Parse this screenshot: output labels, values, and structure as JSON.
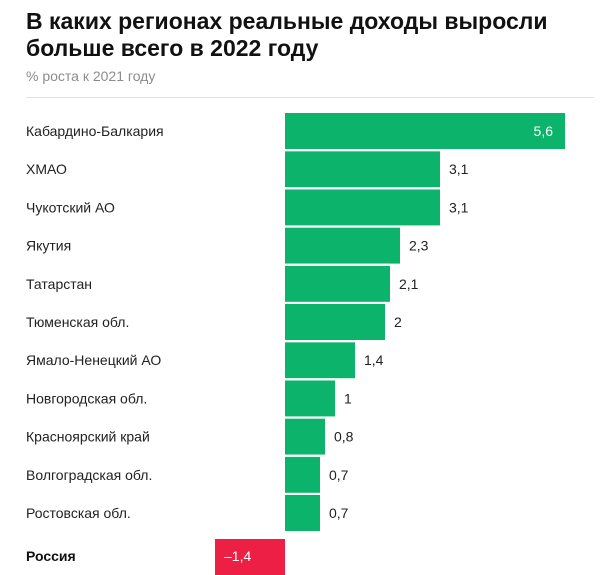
{
  "header": {
    "title": "В каких регионах реальные доходы выросли больше всего в 2022 году",
    "subtitle": "% роста к 2021 году"
  },
  "colors": {
    "positive": "#0bb46a",
    "negative": "#ee1f44",
    "divider": "#ffffff"
  },
  "chart_data": {
    "type": "bar",
    "orientation": "horizontal",
    "title": "В каких регионах реальные доходы выросли больше всего в 2022 году",
    "subtitle": "% роста к 2021 году",
    "categories": [
      "Кабардино-Балкария",
      "ХМАО",
      "Чукотский АО",
      "Якутия",
      "Татарстан",
      "Тюменская обл.",
      "Ямало-Ненецкий АО",
      "Новгородская обл.",
      "Красноярский край",
      "Волгоградская обл.",
      "Ростовская обл."
    ],
    "values": [
      5.6,
      3.1,
      3.1,
      2.3,
      2.1,
      2,
      1.4,
      1,
      0.8,
      0.7,
      0.7
    ],
    "labels": [
      "5,6",
      "3,1",
      "3,1",
      "2,3",
      "2,1",
      "2",
      "1,4",
      "1",
      "0,8",
      "0,7",
      "0,7"
    ],
    "total": {
      "category": "Россия",
      "value": -1.4,
      "label": "–1,4"
    }
  }
}
